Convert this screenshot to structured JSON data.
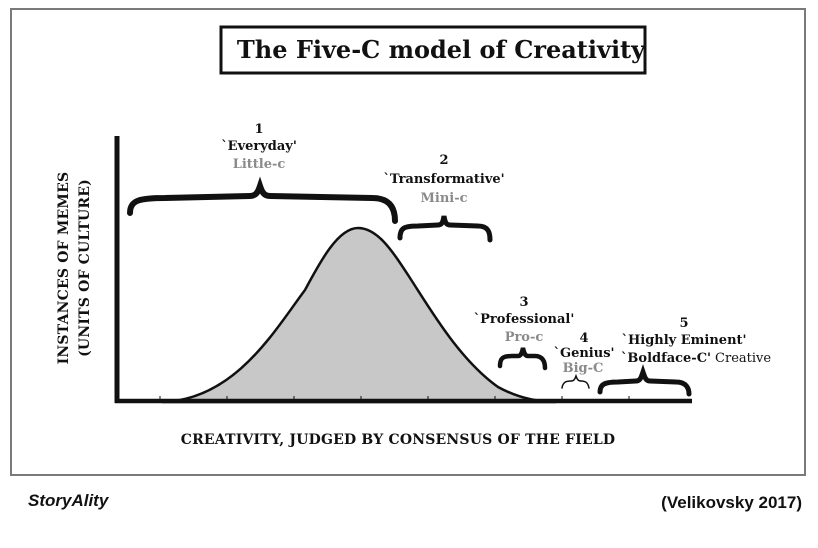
{
  "title": "The Five-C model of Creativity",
  "axes": {
    "y_line1": "INSTANCES OF MEMES",
    "y_line2": "(UNITS OF CULTURE)",
    "x": "CREATIVITY, JUDGED BY CONSENSUS OF THE FIELD"
  },
  "categories": [
    {
      "number": "1",
      "quote": "`Everyday'",
      "label": "Little-c"
    },
    {
      "number": "2",
      "quote": "`Transformative'",
      "label": "Mini-c"
    },
    {
      "number": "3",
      "quote": "`Professional'",
      "label": "Pro-c"
    },
    {
      "number": "4",
      "quote": "`Genius'",
      "label": "Big-C"
    },
    {
      "number": "5",
      "quote": "`Highly Eminent'",
      "label": "`Boldface-C'",
      "label_suffix": "Creative"
    }
  ],
  "footer": {
    "brand": "StoryAlity",
    "citation": "(Velikovsky 2017)"
  },
  "colors": {
    "curve_fill": "#c8c8c8",
    "curve_stroke": "#111111",
    "frame": "#7a7a7a",
    "grey_text": "#8a8a8a"
  }
}
